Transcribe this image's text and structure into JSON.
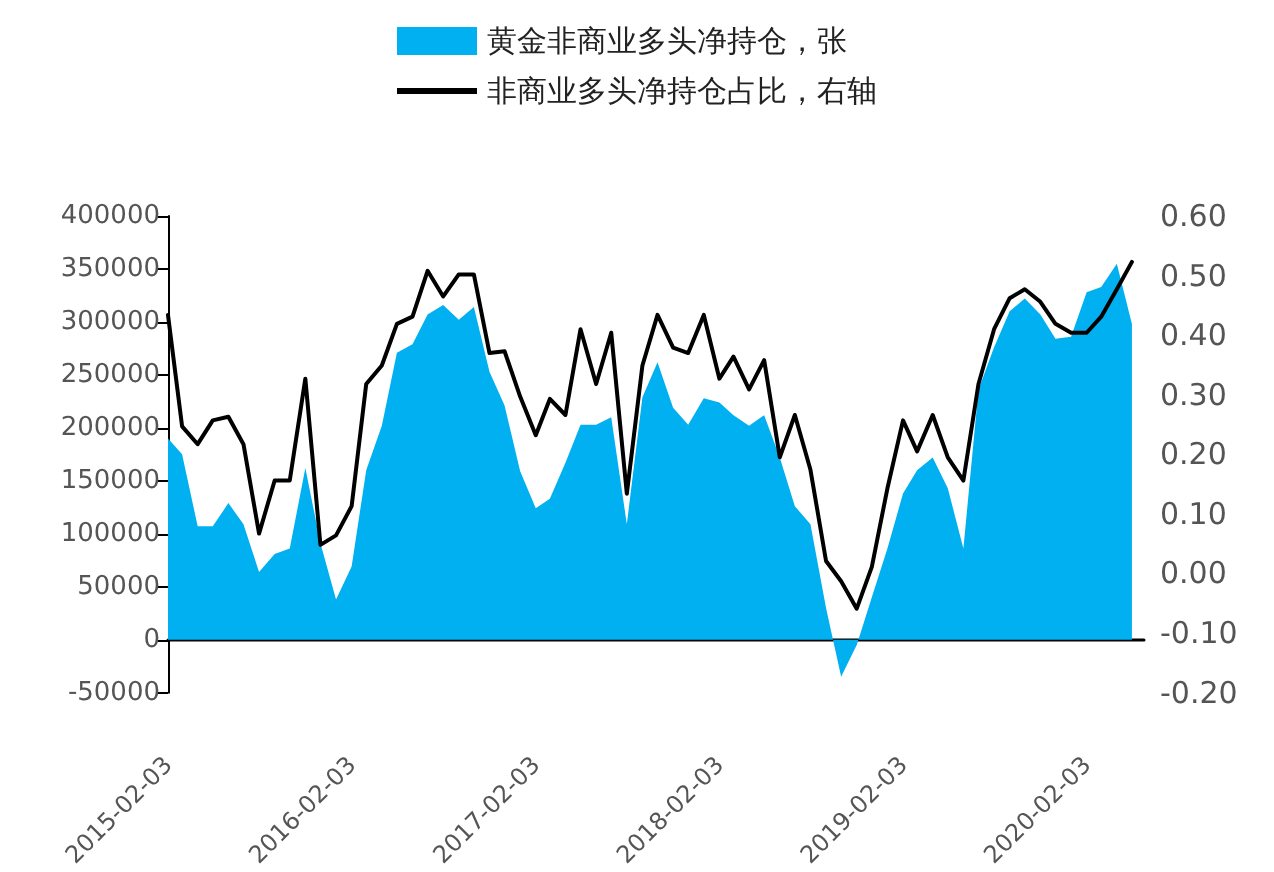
{
  "chart_data": {
    "type": "area",
    "legend": "top",
    "xlim": [
      "2015-02-03",
      "2020-05-27"
    ],
    "xticks": [
      "2015-02-03",
      "2016-02-03",
      "2017-02-03",
      "2018-02-03",
      "2019-02-03",
      "2020-02-03"
    ],
    "ylim": [
      -50000,
      400000
    ],
    "yticks": [
      -50000,
      0,
      50000,
      100000,
      150000,
      200000,
      250000,
      300000,
      350000,
      400000
    ],
    "y2lim": [
      -0.2,
      0.6
    ],
    "y2ticks": [
      {
        "value": -0.2,
        "label": "-0.20"
      },
      {
        "value": -0.1,
        "label": "-0.10"
      },
      {
        "value": 0,
        "label": "0.00"
      },
      {
        "value": 0.1,
        "label": "0.10"
      },
      {
        "value": 0.2,
        "label": "0.20"
      },
      {
        "value": 0.3,
        "label": "0.30"
      },
      {
        "value": 0.4,
        "label": "0.40"
      },
      {
        "value": 0.5,
        "label": "0.50"
      },
      {
        "value": 0.6,
        "label": "0.60"
      }
    ],
    "x": [
      "2015-02-03",
      "2015-03-03",
      "2015-04-03",
      "2015-05-03",
      "2015-06-03",
      "2015-07-03",
      "2015-08-03",
      "2015-09-03",
      "2015-10-03",
      "2015-11-03",
      "2015-12-03",
      "2016-01-03",
      "2016-02-03",
      "2016-03-03",
      "2016-04-03",
      "2016-05-03",
      "2016-06-03",
      "2016-07-03",
      "2016-08-03",
      "2016-09-03",
      "2016-10-03",
      "2016-11-03",
      "2016-12-03",
      "2017-01-03",
      "2017-02-03",
      "2017-03-03",
      "2017-04-03",
      "2017-05-03",
      "2017-06-03",
      "2017-07-03",
      "2017-08-03",
      "2017-09-03",
      "2017-10-03",
      "2017-11-03",
      "2017-12-03",
      "2018-01-03",
      "2018-02-03",
      "2018-03-03",
      "2018-04-03",
      "2018-05-03",
      "2018-06-03",
      "2018-07-03",
      "2018-08-03",
      "2018-09-03",
      "2018-10-03",
      "2018-11-03",
      "2018-12-03",
      "2019-01-03",
      "2019-02-03",
      "2019-03-03",
      "2019-04-03",
      "2019-05-03",
      "2019-06-03",
      "2019-07-03",
      "2019-08-03",
      "2019-09-03",
      "2019-10-03",
      "2019-11-03",
      "2019-12-03",
      "2020-01-03",
      "2020-02-03",
      "2020-03-03",
      "2020-04-03",
      "2020-05-03"
    ],
    "series": [
      {
        "name": "黄金非商业多头净持仓，张",
        "color": "#00b0f0",
        "values": [
          190000,
          175000,
          107000,
          107000,
          129000,
          109000,
          64000,
          81000,
          86000,
          162000,
          91000,
          38000,
          69000,
          160000,
          202000,
          271000,
          279000,
          307000,
          316000,
          302000,
          314000,
          253000,
          221000,
          159000,
          124000,
          133000,
          167000,
          203000,
          203000,
          210000,
          109000,
          229000,
          262000,
          219000,
          203000,
          228000,
          224000,
          212000,
          202000,
          212000,
          172000,
          126000,
          109000,
          30000,
          -35000,
          -5000,
          40000,
          86000,
          138000,
          160000,
          172000,
          143000,
          86000,
          236000,
          276000,
          310000,
          322000,
          307000,
          284000,
          286000,
          328000,
          333000,
          355000,
          298000
        ]
      },
      {
        "name": "非商业多头净持仓占比，右轴",
        "type": "line",
        "axis": "y2",
        "color": "#000000",
        "values": [
          0.434,
          0.247,
          0.217,
          0.257,
          0.263,
          0.217,
          0.067,
          0.156,
          0.156,
          0.327,
          0.048,
          0.064,
          0.113,
          0.318,
          0.349,
          0.419,
          0.431,
          0.508,
          0.465,
          0.502,
          0.502,
          0.37,
          0.373,
          0.297,
          0.232,
          0.293,
          0.266,
          0.41,
          0.318,
          0.404,
          0.134,
          0.349,
          0.434,
          0.379,
          0.37,
          0.434,
          0.327,
          0.364,
          0.309,
          0.358,
          0.195,
          0.266,
          0.174,
          0.021,
          -0.013,
          -0.059,
          0.011,
          0.143,
          0.257,
          0.205,
          0.266,
          0.195,
          0.156,
          0.318,
          0.41,
          0.462,
          0.477,
          0.456,
          0.419,
          0.404,
          0.404,
          0.431,
          0.477,
          0.523
        ]
      }
    ]
  }
}
